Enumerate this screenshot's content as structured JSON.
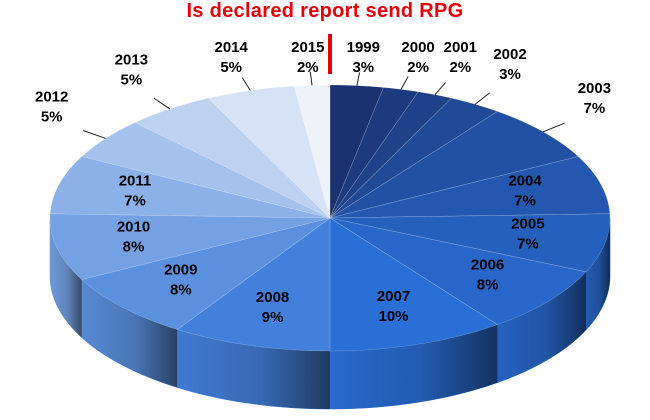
{
  "chart_data": {
    "type": "pie",
    "title": "Is declared report send RPG",
    "categories": [
      "1999",
      "2000",
      "2001",
      "2002",
      "2003",
      "2004",
      "2005",
      "2006",
      "2007",
      "2008",
      "2009",
      "2010",
      "2011",
      "2012",
      "2013",
      "2014",
      "2015"
    ],
    "values": [
      3,
      2,
      2,
      3,
      7,
      7,
      7,
      8,
      10,
      9,
      8,
      8,
      7,
      5,
      5,
      5,
      2
    ],
    "value_labels": [
      "3%",
      "2%",
      "2%",
      "3%",
      "7%",
      "7%",
      "7%",
      "8%",
      "10%",
      "9%",
      "8%",
      "8%",
      "7%",
      "5%",
      "5%",
      "5%",
      "2%"
    ],
    "style": "3d",
    "colors": {
      "title": "#e8000b",
      "start_marker": "#e8000b",
      "dark_start": "#1a3270",
      "mid": "#2a6fd6",
      "light_end": "#eef3fa",
      "label_text": "#000000",
      "label_text_light": "#ffffff"
    }
  }
}
